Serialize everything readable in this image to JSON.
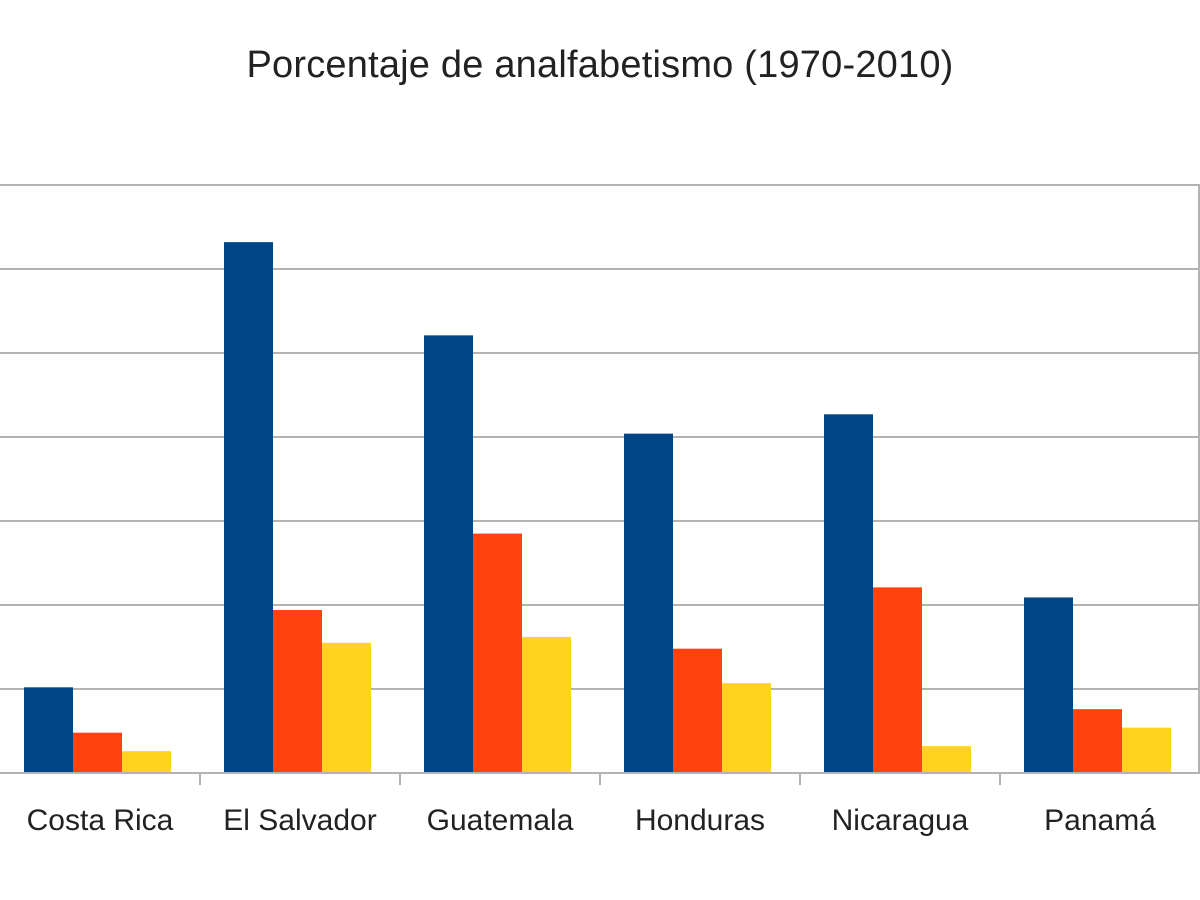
{
  "chart_data": {
    "type": "bar",
    "title": "Porcentaje de analfabetismo (1970-2010)",
    "xlabel": "",
    "ylabel": "",
    "categories": [
      "Costa Rica",
      "El Salvador",
      "Guatemala",
      "Honduras",
      "Nicaragua",
      "Panamá"
    ],
    "series": [
      {
        "values": [
          10.2,
          63.2,
          52.1,
          40.4,
          42.7,
          20.9
        ]
      },
      {
        "values": [
          4.8,
          19.4,
          28.5,
          14.8,
          22.1,
          7.6
        ]
      },
      {
        "values": [
          2.6,
          15.5,
          16.2,
          10.7,
          3.2,
          5.4
        ]
      }
    ],
    "ylim": [
      0,
      70
    ],
    "ytick_interval": 10,
    "grid": true,
    "legend": "none",
    "colors": [
      "#004586",
      "#FF420E",
      "#FFD320"
    ]
  }
}
